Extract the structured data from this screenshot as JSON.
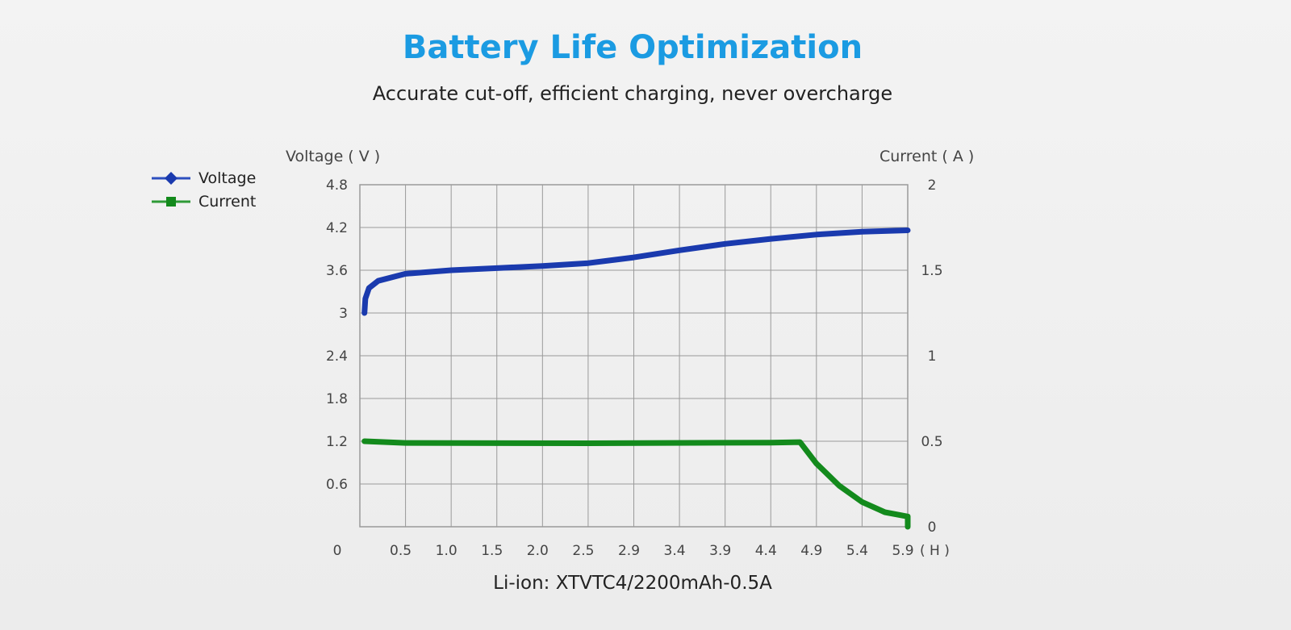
{
  "header": {
    "title": "Battery Life Optimization",
    "subtitle": "Accurate cut-off, efficient charging, never overcharge"
  },
  "caption": "Li-ion: XTVTC4/2200mAh-0.5A",
  "chart_data": {
    "type": "line",
    "title": "Battery Life Optimization",
    "ylabel": "Voltage ( V )",
    "y2label": "Current ( A )",
    "xunit": "( H )",
    "ylim": [
      0,
      4.8
    ],
    "y2lim": [
      0,
      2
    ],
    "grid": true,
    "legend": "top-left",
    "yticks": [
      "0.6",
      "1.2",
      "1.8",
      "2.4",
      "3",
      "3.6",
      "4.2",
      "4.8"
    ],
    "y2ticks": [
      "0",
      "0.5",
      "1",
      "1.5",
      "2"
    ],
    "xorigin_label": "0",
    "xticks": [
      "0.5",
      "1.0",
      "1.5",
      "2.0",
      "2.5",
      "2.9",
      "3.4",
      "3.9",
      "4.4",
      "4.9",
      "5.4",
      "5.9"
    ],
    "series": [
      {
        "name": "Voltage",
        "axis": "left",
        "color": "#1a3aae",
        "marker": "diamond",
        "points": [
          [
            0.05,
            3.0
          ],
          [
            0.06,
            3.2
          ],
          [
            0.1,
            3.35
          ],
          [
            0.2,
            3.45
          ],
          [
            0.5,
            3.55
          ],
          [
            1.0,
            3.6
          ],
          [
            1.5,
            3.63
          ],
          [
            2.0,
            3.66
          ],
          [
            2.5,
            3.7
          ],
          [
            2.9,
            3.78
          ],
          [
            3.4,
            3.88
          ],
          [
            3.9,
            3.97
          ],
          [
            4.4,
            4.04
          ],
          [
            4.9,
            4.1
          ],
          [
            5.4,
            4.14
          ],
          [
            5.9,
            4.16
          ]
        ]
      },
      {
        "name": "Current",
        "axis": "right",
        "color": "#138a1c",
        "marker": "square",
        "points": [
          [
            0.05,
            0.5
          ],
          [
            0.5,
            0.49
          ],
          [
            2.5,
            0.488
          ],
          [
            4.4,
            0.492
          ],
          [
            4.72,
            0.495
          ],
          [
            4.9,
            0.37
          ],
          [
            5.15,
            0.24
          ],
          [
            5.4,
            0.145
          ],
          [
            5.65,
            0.085
          ],
          [
            5.9,
            0.06
          ],
          [
            5.9,
            0.0
          ]
        ]
      }
    ]
  }
}
